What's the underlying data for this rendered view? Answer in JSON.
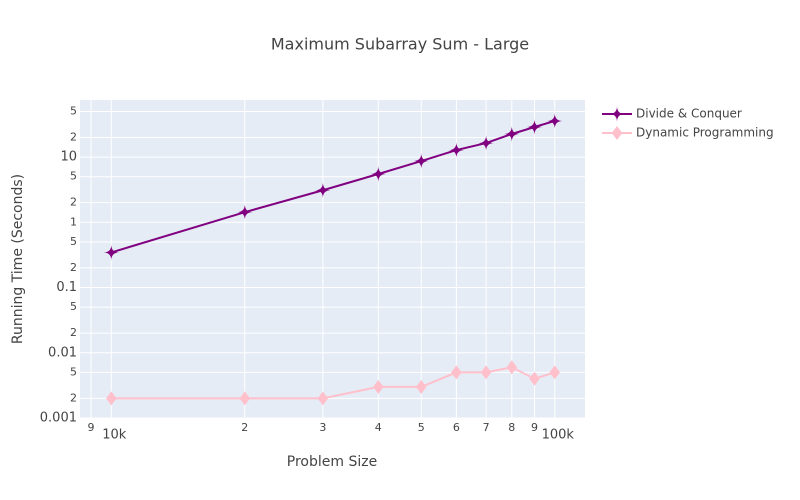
{
  "chart_data": {
    "type": "line",
    "title": "Maximum Subarray Sum - Large",
    "xlabel": "Problem Size",
    "ylabel": "Running Time (Seconds)",
    "x": [
      10000,
      20000,
      30000,
      40000,
      50000,
      60000,
      70000,
      80000,
      90000,
      100000
    ],
    "series": [
      {
        "name": "Divide & Conquer",
        "color": "#800080",
        "marker": "star-diamond",
        "values": [
          0.345,
          1.43,
          3.1,
          5.5,
          8.7,
          12.8,
          16.4,
          22.6,
          28.9,
          35.8
        ]
      },
      {
        "name": "Dynamic Programming",
        "color": "#ffc0cb",
        "marker": "diamond",
        "values": [
          0.002,
          0.002,
          0.002,
          0.003,
          0.003,
          0.005,
          0.005,
          0.006,
          0.004,
          0.005
        ]
      }
    ],
    "xscale": "log",
    "yscale": "log",
    "xlim": [
      8500,
      117000
    ],
    "ylim": [
      0.001,
      75
    ],
    "xticks": [
      {
        "value": 9000,
        "label": "9"
      },
      {
        "value": 10000,
        "label": "10k"
      },
      {
        "value": 20000,
        "label": "2"
      },
      {
        "value": 30000,
        "label": "3"
      },
      {
        "value": 40000,
        "label": "4"
      },
      {
        "value": 50000,
        "label": "5"
      },
      {
        "value": 60000,
        "label": "6"
      },
      {
        "value": 70000,
        "label": "7"
      },
      {
        "value": 80000,
        "label": "8"
      },
      {
        "value": 90000,
        "label": "9"
      },
      {
        "value": 100000,
        "label": "100k"
      }
    ],
    "yticks": [
      0.001,
      {
        "value": 0.002,
        "label": "2"
      },
      {
        "value": 0.005,
        "label": "5"
      },
      0.01,
      {
        "value": 0.02,
        "label": "2"
      },
      {
        "value": 0.05,
        "label": "5"
      },
      0.1,
      {
        "value": 0.2,
        "label": "2"
      },
      {
        "value": 0.5,
        "label": "5"
      },
      1,
      {
        "value": 2,
        "label": "2"
      },
      {
        "value": 5,
        "label": "5"
      },
      10,
      {
        "value": 20,
        "label": "2"
      },
      {
        "value": 50,
        "label": "5"
      }
    ],
    "grid": true,
    "legend": "outside-top-right"
  }
}
